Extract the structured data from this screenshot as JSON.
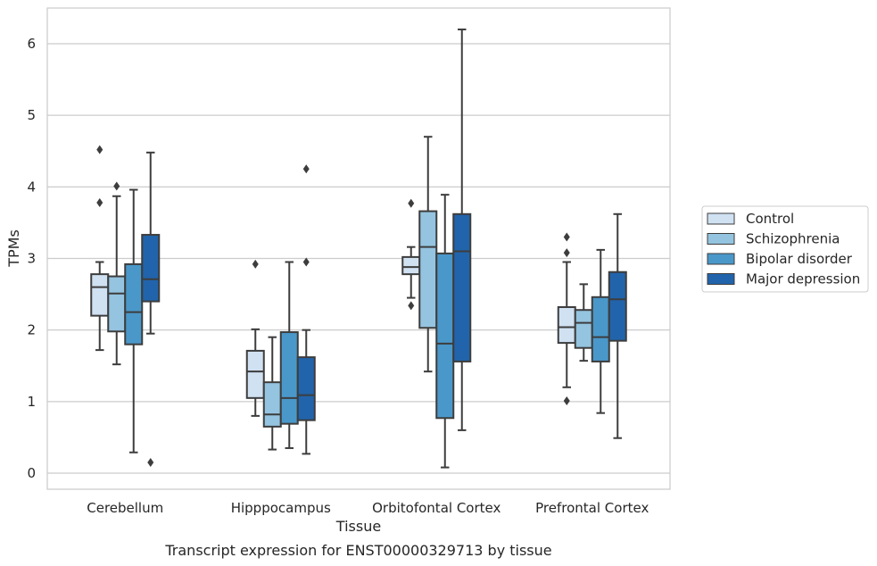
{
  "chart_data": {
    "type": "box",
    "xlabel": "Tissue",
    "ylabel": "TPMs",
    "caption": "Transcript expression for ENST00000329713 by tissue",
    "ylim": [
      -0.2,
      6.5
    ],
    "yticks": [
      0,
      1,
      2,
      3,
      4,
      5,
      6
    ],
    "grid": true,
    "legend_position": "right",
    "categories": [
      "Cerebellum",
      "Hipppocampus",
      "Orbitofontal Cortex",
      "Prefrontal Cortex"
    ],
    "series": [
      {
        "name": "Control",
        "color": "#d0e1f2",
        "boxes": [
          {
            "whislo": 1.72,
            "q1": 2.2,
            "med": 2.6,
            "q3": 2.78,
            "whishi": 2.95,
            "fliers": [
              3.78,
              4.52
            ]
          },
          {
            "whislo": 0.8,
            "q1": 1.05,
            "med": 1.42,
            "q3": 1.71,
            "whishi": 2.01,
            "fliers": [
              2.92
            ]
          },
          {
            "whislo": 2.45,
            "q1": 2.78,
            "med": 2.88,
            "q3": 3.02,
            "whishi": 3.16,
            "fliers": [
              2.34,
              3.77
            ]
          },
          {
            "whislo": 1.2,
            "q1": 1.82,
            "med": 2.04,
            "q3": 2.32,
            "whishi": 2.95,
            "fliers": [
              1.01,
              3.08,
              3.3
            ]
          }
        ]
      },
      {
        "name": "Schizophrenia",
        "color": "#94c4df",
        "boxes": [
          {
            "whislo": 1.52,
            "q1": 1.98,
            "med": 2.51,
            "q3": 2.75,
            "whishi": 3.87,
            "fliers": [
              4.01
            ]
          },
          {
            "whislo": 0.33,
            "q1": 0.65,
            "med": 0.82,
            "q3": 1.27,
            "whishi": 1.9,
            "fliers": []
          },
          {
            "whislo": 1.42,
            "q1": 2.03,
            "med": 3.16,
            "q3": 3.66,
            "whishi": 4.7,
            "fliers": []
          },
          {
            "whislo": 1.57,
            "q1": 1.75,
            "med": 2.1,
            "q3": 2.28,
            "whishi": 2.64,
            "fliers": []
          }
        ]
      },
      {
        "name": "Bipolar disorder",
        "color": "#4a98c9",
        "boxes": [
          {
            "whislo": 0.29,
            "q1": 1.8,
            "med": 2.25,
            "q3": 2.92,
            "whishi": 3.96,
            "fliers": []
          },
          {
            "whislo": 0.35,
            "q1": 0.69,
            "med": 1.05,
            "q3": 1.97,
            "whishi": 2.95,
            "fliers": []
          },
          {
            "whislo": 0.08,
            "q1": 0.77,
            "med": 1.81,
            "q3": 3.07,
            "whishi": 3.89,
            "fliers": []
          },
          {
            "whislo": 0.84,
            "q1": 1.56,
            "med": 1.9,
            "q3": 2.46,
            "whishi": 3.12,
            "fliers": []
          }
        ]
      },
      {
        "name": "Major depression",
        "color": "#2164ab",
        "boxes": [
          {
            "whislo": 1.95,
            "q1": 2.4,
            "med": 2.71,
            "q3": 3.33,
            "whishi": 4.48,
            "fliers": [
              0.15
            ]
          },
          {
            "whislo": 0.27,
            "q1": 0.74,
            "med": 1.09,
            "q3": 1.62,
            "whishi": 2.0,
            "fliers": [
              2.95,
              4.25
            ]
          },
          {
            "whislo": 0.6,
            "q1": 1.56,
            "med": 3.1,
            "q3": 3.62,
            "whishi": 6.2,
            "fliers": []
          },
          {
            "whislo": 0.49,
            "q1": 1.85,
            "med": 2.43,
            "q3": 2.81,
            "whishi": 3.62,
            "fliers": []
          }
        ]
      }
    ]
  }
}
